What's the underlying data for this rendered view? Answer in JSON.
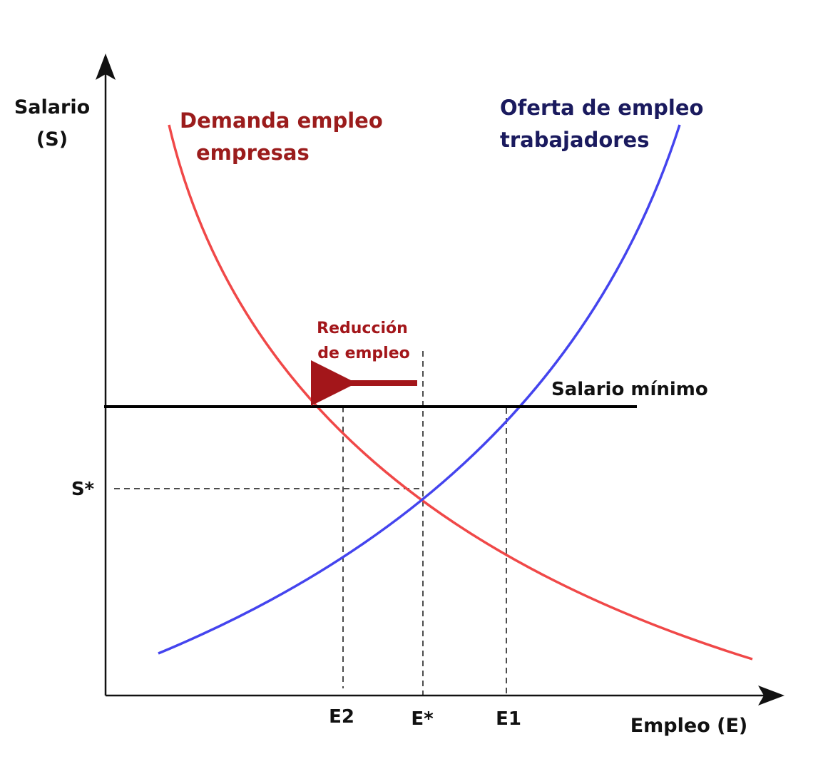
{
  "axes": {
    "y_label_line1": "Salario",
    "y_label_line2": "(S)",
    "x_label": "Empleo (E)"
  },
  "demand": {
    "label_line1": "Demanda empleo",
    "label_line2": "empresas",
    "color": "#f04848",
    "label_color": "#9b1c1c"
  },
  "supply": {
    "label_line1": "Oferta de empleo",
    "label_line2": "trabajadores",
    "color": "#4444ee",
    "label_color": "#1a1a5e"
  },
  "minimum_wage": {
    "label": "Salario mínimo",
    "color": "#000000"
  },
  "annotation": {
    "line1": "Reducción",
    "line2": "de empleo",
    "color": "#a3161a"
  },
  "ticks": {
    "s_star": "S*",
    "e2": "E2",
    "e_star": "E*",
    "e1": "E1"
  }
}
